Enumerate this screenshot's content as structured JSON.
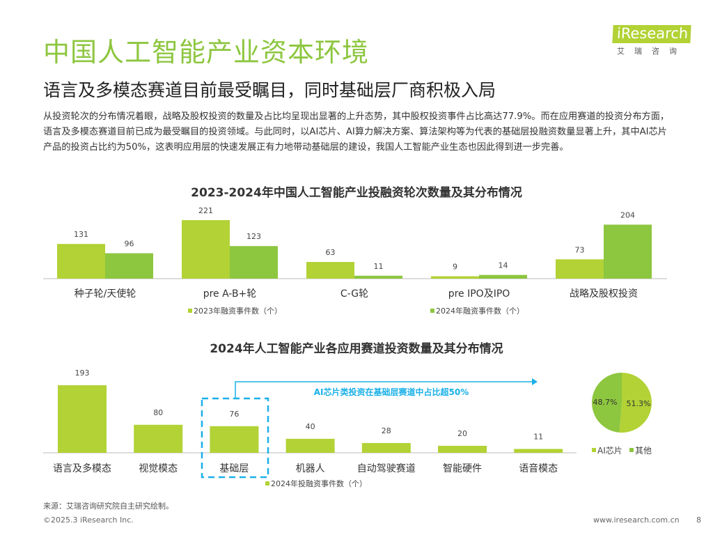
{
  "header": {
    "title": "中国人工智能产业资本环境",
    "subtitle": "语言及多模态赛道目前最受瞩目，同时基础层厂商积极入局",
    "paragraph": "从投资轮次的分布情况着眼，战略及股权投资的数量及占比均呈现出显著的上升态势，其中股权投资事件占比高达77.9%。而在应用赛道的投资分布方面，语言及多模态赛道目前已成为最受瞩目的投资领域。与此同时，以AI芯片、AI算力解决方案、算法架构等为代表的基础层投融资数量显著上升，其中AI芯片产品的投资占比约为50%，这表明应用层的快速发展正有力地带动基础层的建设，我国人工智能产业生态也因此得到进一步完善。"
  },
  "logo": {
    "brand": "iResearch",
    "cn": "艾瑞咨询"
  },
  "colors": {
    "light_green": "#b2d235",
    "green": "#8dc63f",
    "accent_blue": "#1ab0e8"
  },
  "chart_data": [
    {
      "type": "bar",
      "title": "2023-2024年中国人工智能产业投融资轮次数量及其分布情况",
      "categories": [
        "种子轮/天使轮",
        "pre A-B+轮",
        "C-G轮",
        "pre IPO及IPO",
        "战略及股权投资"
      ],
      "series": [
        {
          "name": "2023年融资事件数（个）",
          "values": [
            131,
            221,
            63,
            9,
            73
          ]
        },
        {
          "name": "2024年融资事件数（个）",
          "values": [
            96,
            123,
            11,
            14,
            204
          ]
        }
      ],
      "legend": "bottom"
    },
    {
      "type": "bar",
      "title": "2024年人工智能产业各应用赛道投资数量及其分布情况",
      "categories": [
        "语言及多模态",
        "视觉模态",
        "基础层",
        "机器人",
        "自动驾驶赛道",
        "智能硬件",
        "语音模态"
      ],
      "series": [
        {
          "name": "2024年投融资事件数（个）",
          "values": [
            193,
            80,
            76,
            40,
            28,
            20,
            11
          ]
        }
      ],
      "annotation": "AI芯片类投资在基础层赛道中占比超50%",
      "highlight": "基础层",
      "legend": "bottom"
    },
    {
      "type": "pie",
      "labels": [
        "AI芯片",
        "其他"
      ],
      "values": [
        51.3,
        48.7
      ],
      "value_labels": [
        "51.3%",
        "48.7%"
      ],
      "legend": "bottom"
    }
  ],
  "footer": {
    "source": "来源：艾瑞咨询研究院自主研究绘制。",
    "copyright": "©2025.3 iResearch Inc.",
    "url": "www.iresearch.com.cn",
    "page": "8"
  }
}
